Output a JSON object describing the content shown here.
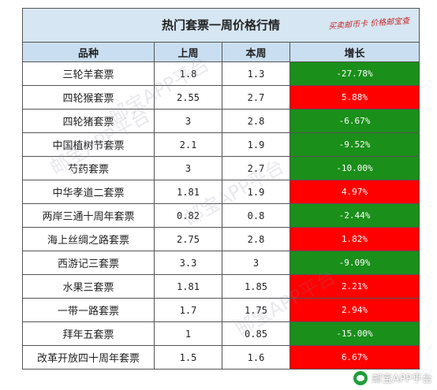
{
  "title": "热门套票一周价格行情",
  "stamp": "买卖邮币卡 价格邮宝查",
  "headers": [
    "品种",
    "上周",
    "本周",
    "增长"
  ],
  "rows": [
    {
      "name": "三轮羊套票",
      "last": "1.8",
      "this": "1.3",
      "change": "-27.78%",
      "dir": "down"
    },
    {
      "name": "四轮猴套票",
      "last": "2.55",
      "this": "2.7",
      "change": "5.88%",
      "dir": "up"
    },
    {
      "name": "四轮猪套票",
      "last": "3",
      "this": "2.8",
      "change": "-6.67%",
      "dir": "down"
    },
    {
      "name": "中国植树节套票",
      "last": "2.1",
      "this": "1.9",
      "change": "-9.52%",
      "dir": "down"
    },
    {
      "name": "芍药套票",
      "last": "3",
      "this": "2.7",
      "change": "-10.00%",
      "dir": "down"
    },
    {
      "name": "中华孝道二套票",
      "last": "1.81",
      "this": "1.9",
      "change": "4.97%",
      "dir": "up"
    },
    {
      "name": "两岸三通十周年套票",
      "last": "0.82",
      "this": "0.8",
      "change": "-2.44%",
      "dir": "down"
    },
    {
      "name": "海上丝绸之路套票",
      "last": "2.75",
      "this": "2.8",
      "change": "1.82%",
      "dir": "up"
    },
    {
      "name": "西游记三套票",
      "last": "3.3",
      "this": "3",
      "change": "-9.09%",
      "dir": "down"
    },
    {
      "name": "水果三套票",
      "last": "1.81",
      "this": "1.85",
      "change": "2.21%",
      "dir": "up"
    },
    {
      "name": "一带一路套票",
      "last": "1.7",
      "this": "1.75",
      "change": "2.94%",
      "dir": "up"
    },
    {
      "name": "拜年五套票",
      "last": "1",
      "this": "0.85",
      "change": "-15.00%",
      "dir": "down"
    },
    {
      "name": "改革开放四十周年套票",
      "last": "1.5",
      "this": "1.6",
      "change": "6.67%",
      "dir": "up"
    }
  ],
  "watermark": "邮宝APP平台",
  "logo_text": "邮宝APP平台",
  "colors": {
    "up": "#ff0000",
    "down": "#1a8f1a",
    "header": "#c9def0",
    "title_bg": "#d6e6f2"
  }
}
